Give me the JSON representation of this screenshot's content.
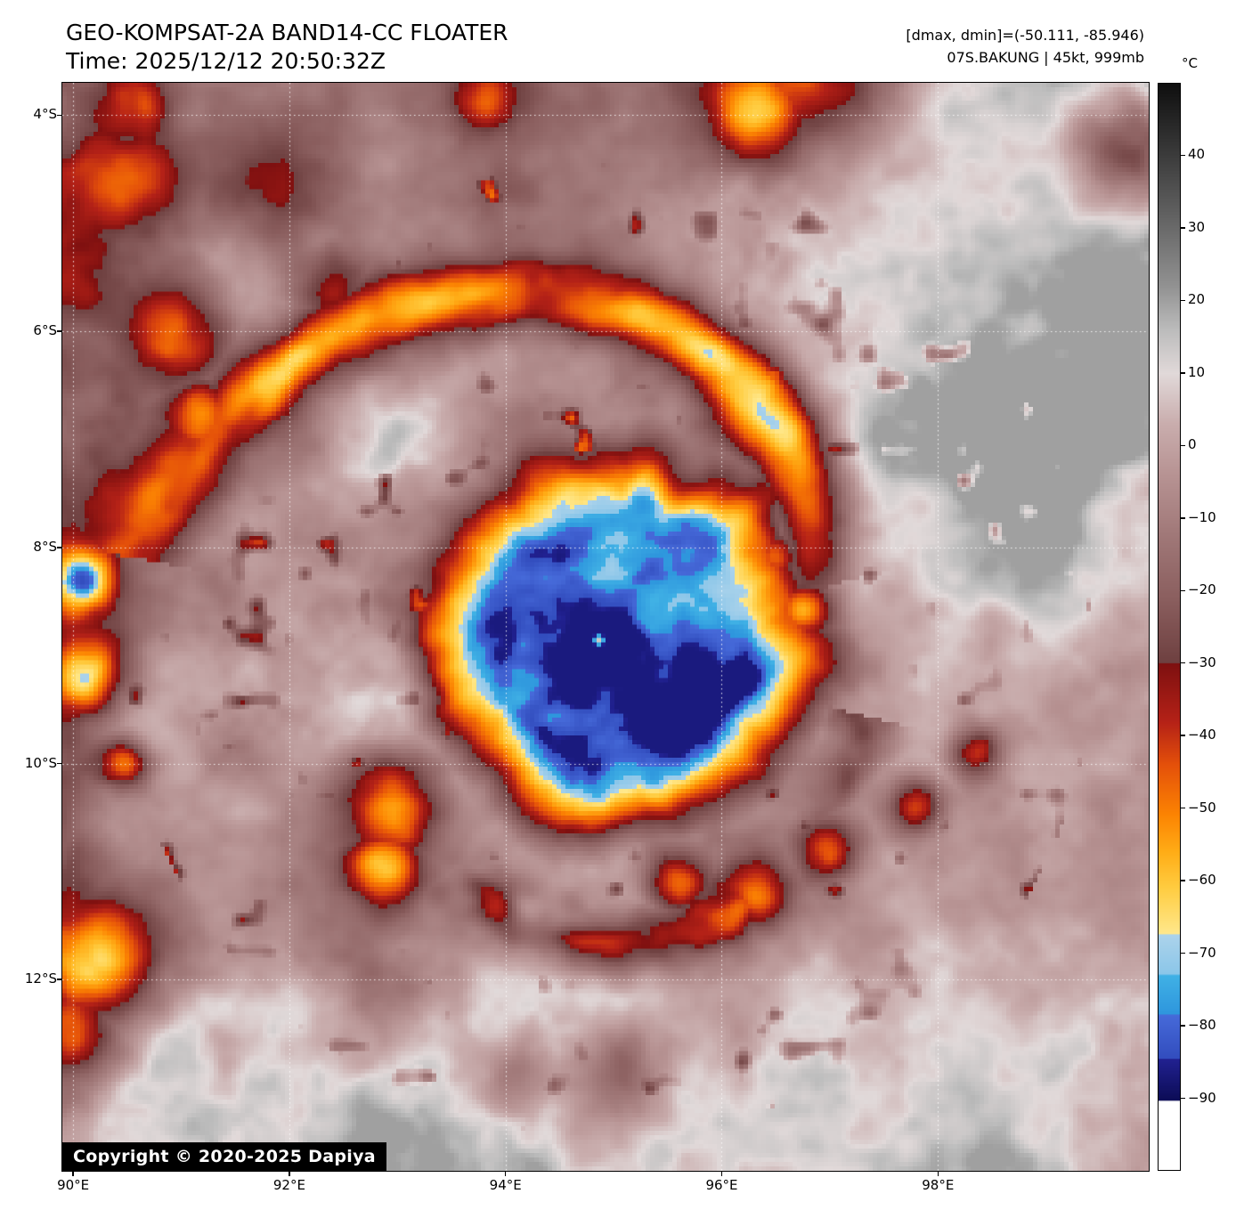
{
  "header": {
    "title": "GEO-KOMPSAT-2A BAND14-CC FLOATER",
    "time": "Time: 2025/12/12 20:50:32Z",
    "dmax_dmin": "[dmax, dmin]=(-50.111, -85.946)",
    "storm_info": "07S.BAKUNG | 45kt, 999mb"
  },
  "map": {
    "copyright": "Copyright © 2020-2025 Dapiya"
  },
  "axes": {
    "extent": {
      "west": 89.9,
      "east": 99.95,
      "north_s": 3.7,
      "south_s": 13.77
    },
    "lat_labels": [
      {
        "text": "4°S",
        "lat_s": 4
      },
      {
        "text": "6°S",
        "lat_s": 6
      },
      {
        "text": "8°S",
        "lat_s": 8
      },
      {
        "text": "10°S",
        "lat_s": 10
      },
      {
        "text": "12°S",
        "lat_s": 12
      }
    ],
    "lon_labels": [
      {
        "text": "90°E",
        "lon": 90
      },
      {
        "text": "92°E",
        "lon": 92
      },
      {
        "text": "94°E",
        "lon": 94
      },
      {
        "text": "96°E",
        "lon": 96
      },
      {
        "text": "98°E",
        "lon": 98
      }
    ],
    "grid_lons": [
      90,
      92,
      94,
      96,
      98
    ],
    "grid_lats_s": [
      4,
      6,
      8,
      10,
      12
    ]
  },
  "colorbar": {
    "unit": "°C",
    "top_temp": 50,
    "bottom_temp": -100,
    "ticks": [
      {
        "temp": 40,
        "label": "40"
      },
      {
        "temp": 30,
        "label": "30"
      },
      {
        "temp": 20,
        "label": "20"
      },
      {
        "temp": 10,
        "label": "10"
      },
      {
        "temp": 0,
        "label": "0"
      },
      {
        "temp": -10,
        "label": "−10"
      },
      {
        "temp": -20,
        "label": "−20"
      },
      {
        "temp": -30,
        "label": "−30"
      },
      {
        "temp": -40,
        "label": "−40"
      },
      {
        "temp": -50,
        "label": "−50"
      },
      {
        "temp": -60,
        "label": "−60"
      },
      {
        "temp": -70,
        "label": "−70"
      },
      {
        "temp": -80,
        "label": "−80"
      },
      {
        "temp": -90,
        "label": "−90"
      }
    ]
  },
  "scene": {
    "seed": 7,
    "clamp_min": -86.5,
    "colormap_stops": [
      [
        50,
        15,
        15,
        15
      ],
      [
        40,
        60,
        60,
        60
      ],
      [
        30,
        106,
        106,
        106
      ],
      [
        22,
        146,
        146,
        146
      ],
      [
        16,
        188,
        188,
        188
      ],
      [
        10,
        225,
        217,
        217
      ],
      [
        3,
        201,
        173,
        173
      ],
      [
        -4,
        183,
        147,
        147
      ],
      [
        -12,
        161,
        121,
        121
      ],
      [
        -21,
        139,
        95,
        95
      ],
      [
        -30,
        110,
        64,
        64
      ],
      [
        -30.05,
        126,
        16,
        16
      ],
      [
        -38,
        180,
        33,
        23
      ],
      [
        -44,
        228,
        80,
        10
      ],
      [
        -51,
        252,
        132,
        2
      ],
      [
        -56,
        255,
        172,
        22
      ],
      [
        -61,
        255,
        204,
        64
      ],
      [
        -67.4,
        255,
        232,
        140
      ],
      [
        -67.5,
        172,
        211,
        235
      ],
      [
        -73,
        139,
        198,
        233
      ],
      [
        -73.1,
        64,
        177,
        229
      ],
      [
        -78.5,
        46,
        150,
        221
      ],
      [
        -78.6,
        70,
        106,
        217
      ],
      [
        -84.6,
        50,
        77,
        190
      ],
      [
        -84.7,
        33,
        33,
        145
      ],
      [
        -90.4,
        12,
        12,
        86
      ],
      [
        -90.5,
        255,
        255,
        255
      ],
      [
        -101,
        255,
        255,
        255
      ]
    ],
    "base": {
      "mean": -26,
      "a1": 36,
      "a2": 14,
      "a3": 9,
      "a4": 6
    },
    "cyclone": {
      "lon": 94.95,
      "lat_s": 8.95,
      "eye_lon": 94.87,
      "eye_lat_s": 8.86,
      "eye_amp": 100,
      "eye_sigma": 0.028
    },
    "cdo": {
      "amp": 74,
      "inner_amp": 12,
      "inner_sigma": 0.38,
      "r_flat": 1.05,
      "r_out": 2.2,
      "edge_noise": 0.26,
      "tex_amp": 0.3
    },
    "band_north": {
      "r0": 2.6,
      "slope": -0.92,
      "theta_ref": -0.925,
      "theta_min": -2.95,
      "theta_max": -0.28,
      "width": 0.38,
      "amp": 52
    },
    "band_south": {
      "radius": 2.55,
      "theta_min": 0.25,
      "theta_max": 2.7,
      "width": 0.3,
      "amp": 48
    },
    "east_gray": {
      "lon0": 97.0,
      "k": 2.0,
      "lat0": 8.6,
      "kl": 1.2,
      "amp": 24
    },
    "south_gray": {
      "lat0": 12.15,
      "k": 2.2,
      "amp": 20
    },
    "west_cold": {
      "lon0": 90.45,
      "k": 5.0,
      "amp": 16
    },
    "ne_dark": {
      "lon0": 98.3,
      "k": 2.5,
      "lat0": 5.5,
      "kl": 1.5,
      "amp": 9
    },
    "warm_blobs": [
      [
        92.35,
        9.15,
        1.0,
        18
      ],
      [
        96.6,
        5.2,
        0.85,
        14
      ],
      [
        93.0,
        7.1,
        0.55,
        11
      ],
      [
        99.4,
        6.9,
        0.9,
        12
      ],
      [
        94.3,
        13.4,
        1.6,
        10
      ],
      [
        91.0,
        13.2,
        1.1,
        9
      ]
    ],
    "cold_blobs": [
      [
        96.95,
        3.35,
        0.85,
        54
      ],
      [
        96.35,
        3.95,
        0.5,
        48
      ],
      [
        99.75,
        4.25,
        0.55,
        52
      ],
      [
        93.8,
        3.85,
        0.32,
        30
      ],
      [
        90.5,
        4.6,
        0.5,
        30
      ],
      [
        90.6,
        3.9,
        0.4,
        32
      ],
      [
        92.0,
        4.6,
        0.6,
        20
      ],
      [
        92.4,
        5.65,
        0.4,
        28
      ],
      [
        90.97,
        6.06,
        0.45,
        40
      ],
      [
        91.2,
        6.8,
        0.35,
        44
      ],
      [
        90.08,
        8.3,
        0.3,
        56
      ],
      [
        90.15,
        9.2,
        0.32,
        44
      ],
      [
        90.48,
        10.0,
        0.2,
        50
      ],
      [
        90.2,
        11.9,
        0.6,
        54
      ],
      [
        90.0,
        12.45,
        0.45,
        48
      ],
      [
        92.9,
        10.4,
        0.45,
        48
      ],
      [
        92.85,
        10.95,
        0.35,
        46
      ],
      [
        95.6,
        11.1,
        0.3,
        46
      ],
      [
        96.3,
        11.2,
        0.35,
        44
      ],
      [
        97.0,
        10.8,
        0.3,
        42
      ],
      [
        97.8,
        10.4,
        0.28,
        44
      ],
      [
        98.35,
        9.9,
        0.25,
        46
      ],
      [
        96.5,
        8.1,
        0.28,
        50
      ],
      [
        96.75,
        8.55,
        0.3,
        52
      ],
      [
        96.6,
        7.3,
        0.22,
        44
      ],
      [
        95.0,
        13.0,
        0.5,
        24
      ],
      [
        94.1,
        12.85,
        0.35,
        22
      ]
    ]
  }
}
